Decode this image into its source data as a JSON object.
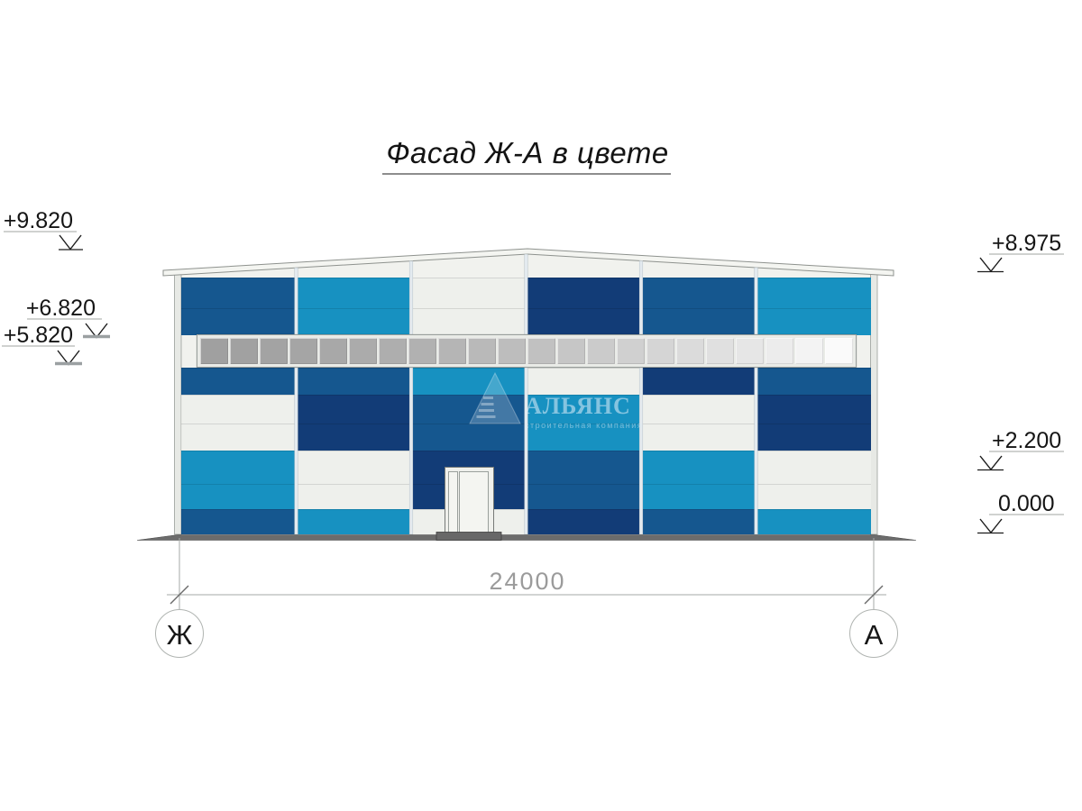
{
  "title": {
    "text": "Фасад Ж-А в цвете"
  },
  "elevation_markers": {
    "left": [
      {
        "label": "+9.820"
      },
      {
        "label": "+6.820"
      },
      {
        "label": "+5.820"
      }
    ],
    "right": [
      {
        "label": "+8.975"
      },
      {
        "label": "+2.200"
      },
      {
        "label": "0.000"
      }
    ]
  },
  "dimension": {
    "value": "24000"
  },
  "axes": [
    {
      "label": "Ж"
    },
    {
      "label": "А"
    }
  ],
  "watermark": {
    "name": "АЛЬЯНС",
    "subtitle": "строительная компания",
    "logo_icon": "pyramid-logo"
  },
  "facade": {
    "colors": {
      "blue": "#15578f",
      "navy": "#123c77",
      "cyan": "#1791c1",
      "white": "#eef0ec",
      "wall_white": "#f1f2ee",
      "ground_gray": "#6c6c6c",
      "mullion_gray": "#e3eaef"
    },
    "bays": [
      {
        "name": "bay-1",
        "top": [
          "blue",
          "blue"
        ],
        "rows": [
          "blue",
          "white",
          "white",
          "cyan",
          "cyan",
          "blue"
        ]
      },
      {
        "name": "bay-2",
        "top": [
          "cyan",
          "cyan"
        ],
        "rows": [
          "blue",
          "navy",
          "navy",
          "white",
          "white",
          "cyan"
        ]
      },
      {
        "name": "bay-3",
        "top": [
          "white",
          "white"
        ],
        "rows": [
          "cyan",
          "blue",
          "blue",
          "navy",
          "navy",
          "white"
        ]
      },
      {
        "name": "bay-4",
        "top": [
          "navy",
          "navy"
        ],
        "rows": [
          "white",
          "cyan",
          "cyan",
          "blue",
          "blue",
          "navy"
        ]
      },
      {
        "name": "bay-5",
        "top": [
          "blue",
          "blue"
        ],
        "rows": [
          "navy",
          "white",
          "white",
          "cyan",
          "cyan",
          "blue"
        ]
      },
      {
        "name": "bay-6",
        "top": [
          "cyan",
          "cyan"
        ],
        "rows": [
          "blue",
          "navy",
          "navy",
          "white",
          "white",
          "cyan"
        ]
      }
    ],
    "window_band": {
      "pane_count": 22,
      "pane_colors": [
        "#a0a0a0",
        "#a1a1a1",
        "#a3a3a3",
        "#a5a5a5",
        "#a8a8a8",
        "#ababab",
        "#aeaeae",
        "#b1b1b1",
        "#b5b5b5",
        "#b9b9b9",
        "#bdbdbd",
        "#c1c1c1",
        "#c6c6c6",
        "#cbcbcb",
        "#d0d0d0",
        "#d5d5d5",
        "#dbdbdb",
        "#e0e0e0",
        "#e6e6e6",
        "#ececec",
        "#f3f3f3",
        "#fafafa"
      ]
    }
  }
}
